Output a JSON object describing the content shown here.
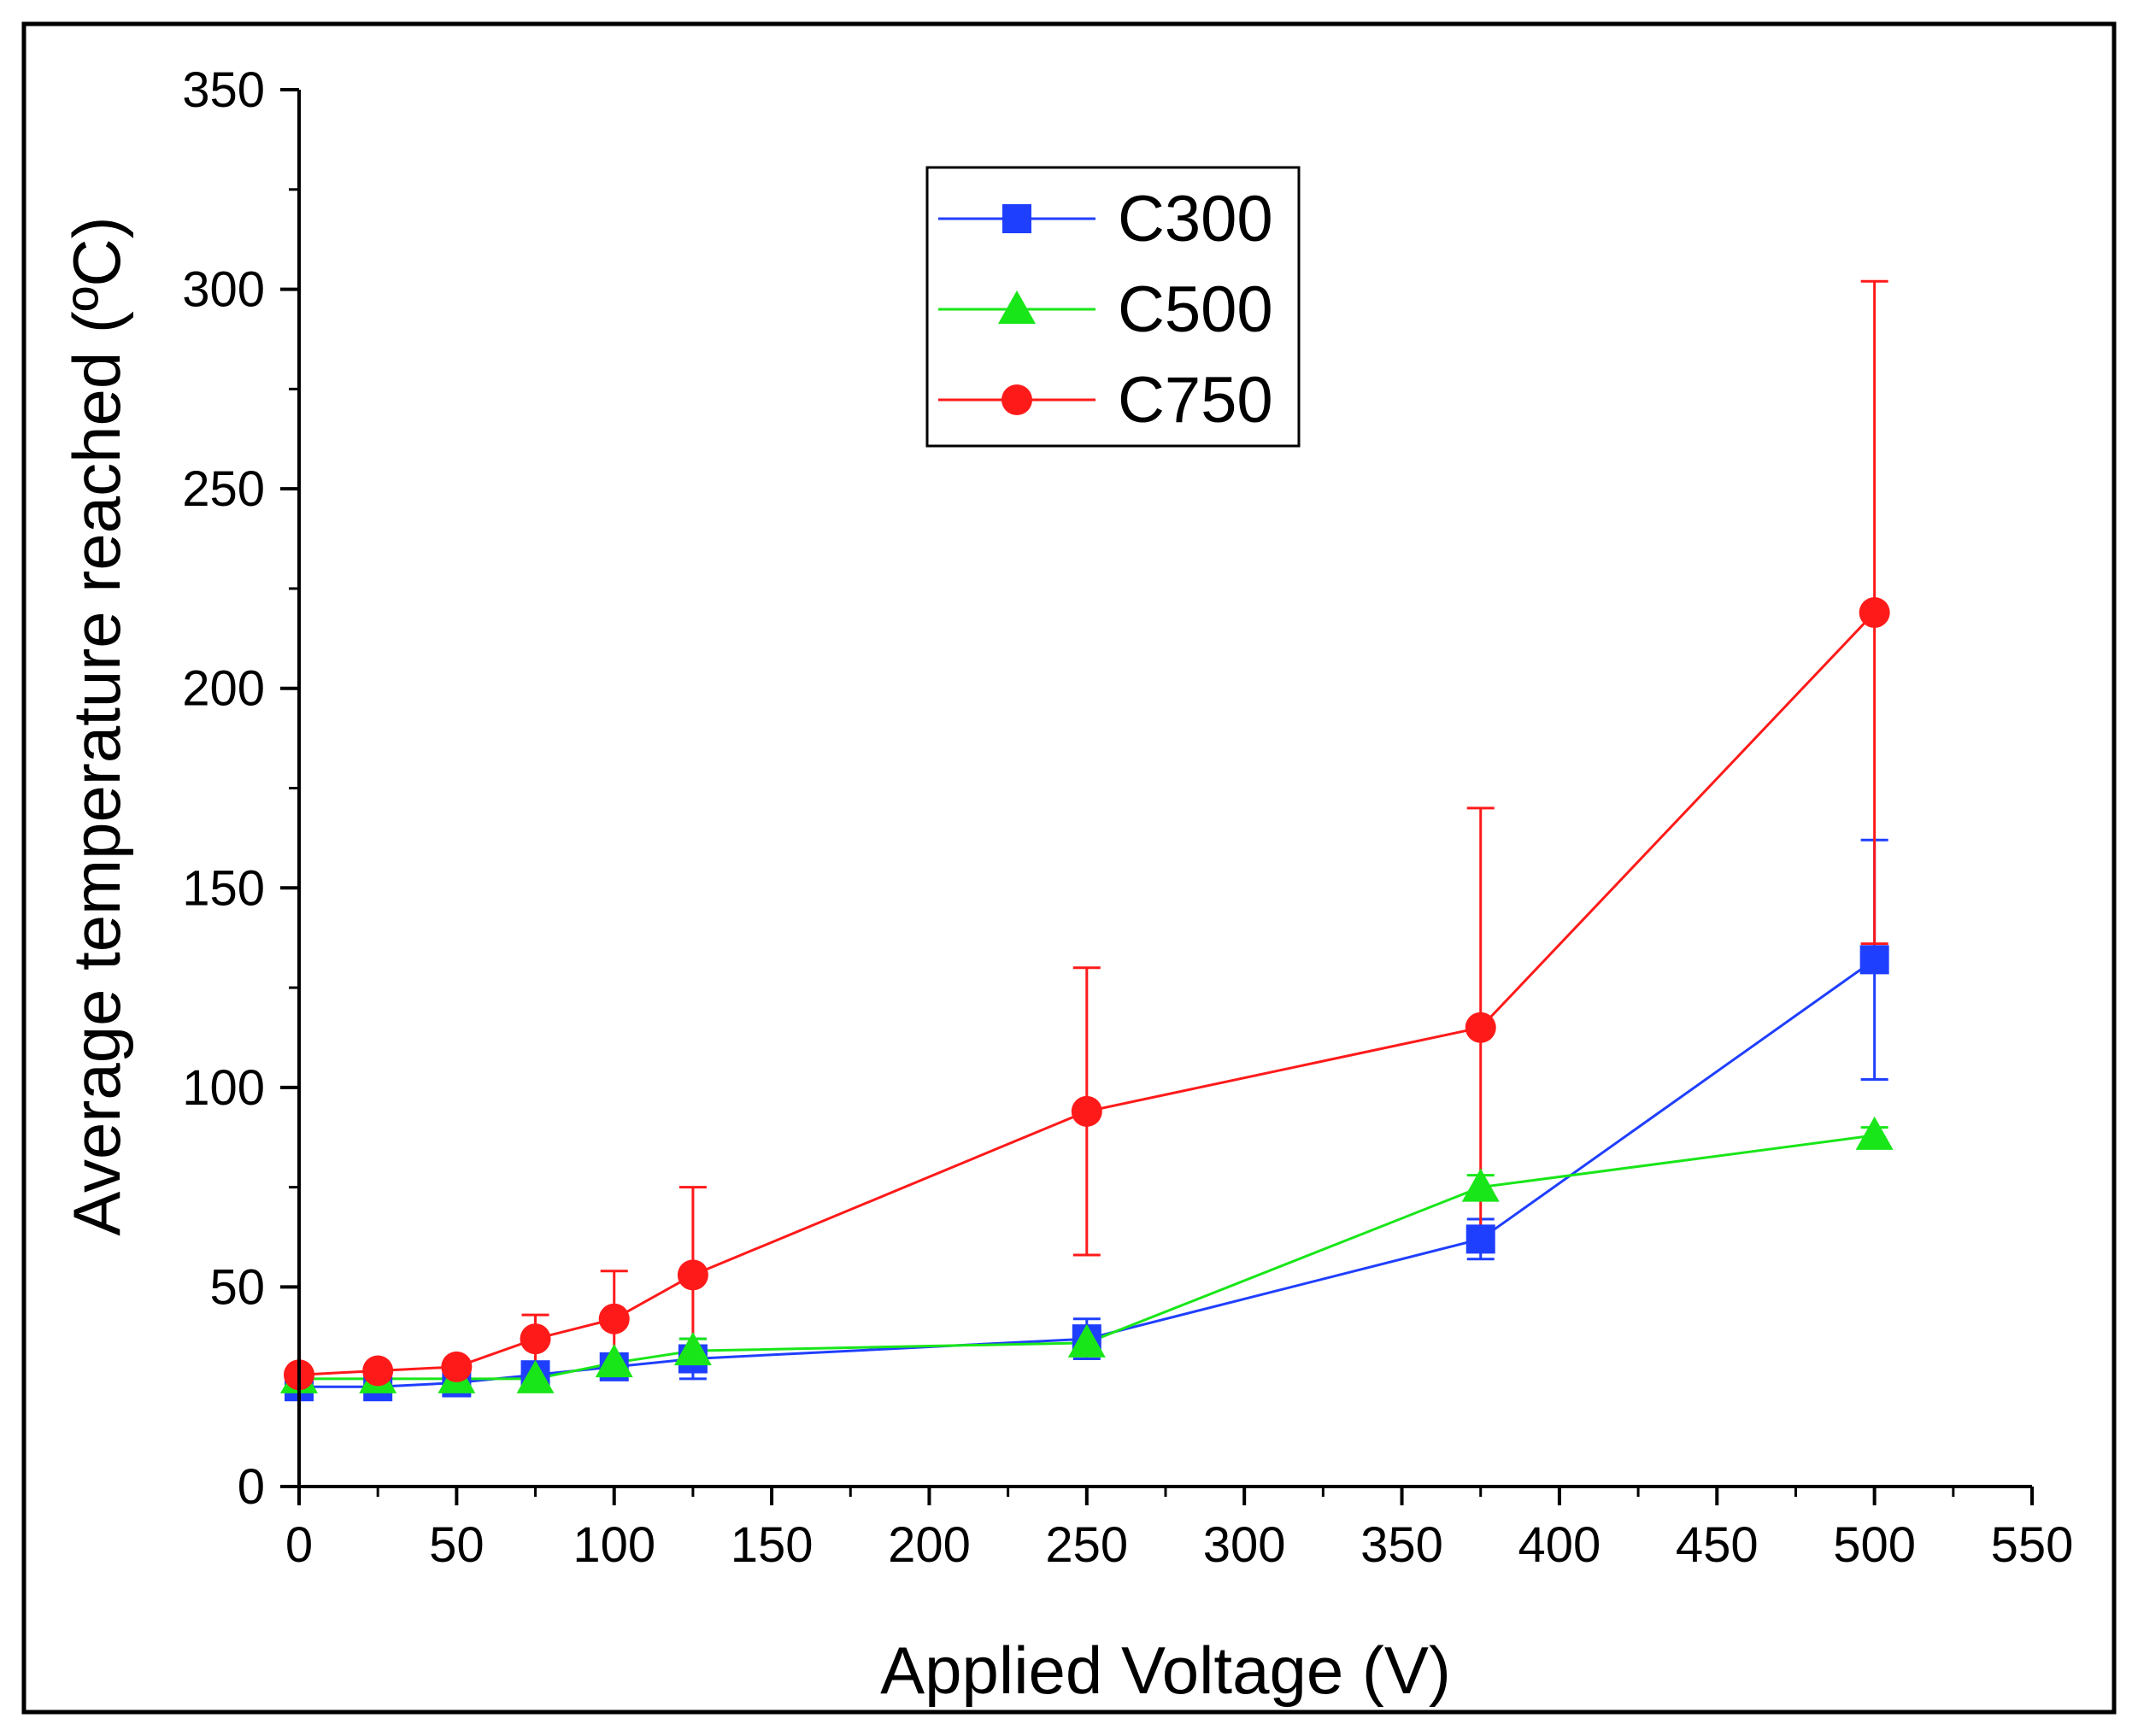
{
  "chart_data": {
    "type": "line",
    "title": "",
    "xlabel": "Applied Voltage (V)",
    "ylabel": "Average temperature reached (ºC)",
    "xlim": [
      0,
      550
    ],
    "ylim": [
      0,
      350
    ],
    "xticks": [
      0,
      50,
      100,
      150,
      200,
      250,
      300,
      350,
      400,
      450,
      500,
      550
    ],
    "yticks": [
      0,
      50,
      100,
      150,
      200,
      250,
      300,
      350
    ],
    "x_minor_step": 25,
    "y_minor_step": 25,
    "grid": false,
    "legend_position": "top-center",
    "series": [
      {
        "name": "C300",
        "color": "#1f3fff",
        "marker": "square",
        "x": [
          0,
          25,
          50,
          75,
          100,
          125,
          250,
          375,
          500
        ],
        "y": [
          25,
          25,
          26,
          28,
          30,
          32,
          37,
          62,
          132
        ],
        "err": [
          1,
          1,
          1,
          2,
          3,
          5,
          5,
          5,
          30
        ]
      },
      {
        "name": "C500",
        "color": "#19e619",
        "marker": "triangle",
        "x": [
          0,
          25,
          50,
          75,
          100,
          125,
          250,
          375,
          500
        ],
        "y": [
          27,
          27,
          27,
          27,
          31,
          34,
          36,
          75,
          88
        ],
        "err": [
          1,
          1,
          1,
          1,
          2,
          3,
          3,
          3,
          2
        ]
      },
      {
        "name": "C750",
        "color": "#ff1a1a",
        "marker": "circle",
        "x": [
          0,
          25,
          50,
          75,
          100,
          125,
          250,
          375,
          500
        ],
        "y": [
          28,
          29,
          30,
          37,
          42,
          53,
          94,
          115,
          219
        ],
        "err": [
          1,
          1,
          1,
          6,
          12,
          22,
          36,
          55,
          83
        ]
      }
    ]
  }
}
